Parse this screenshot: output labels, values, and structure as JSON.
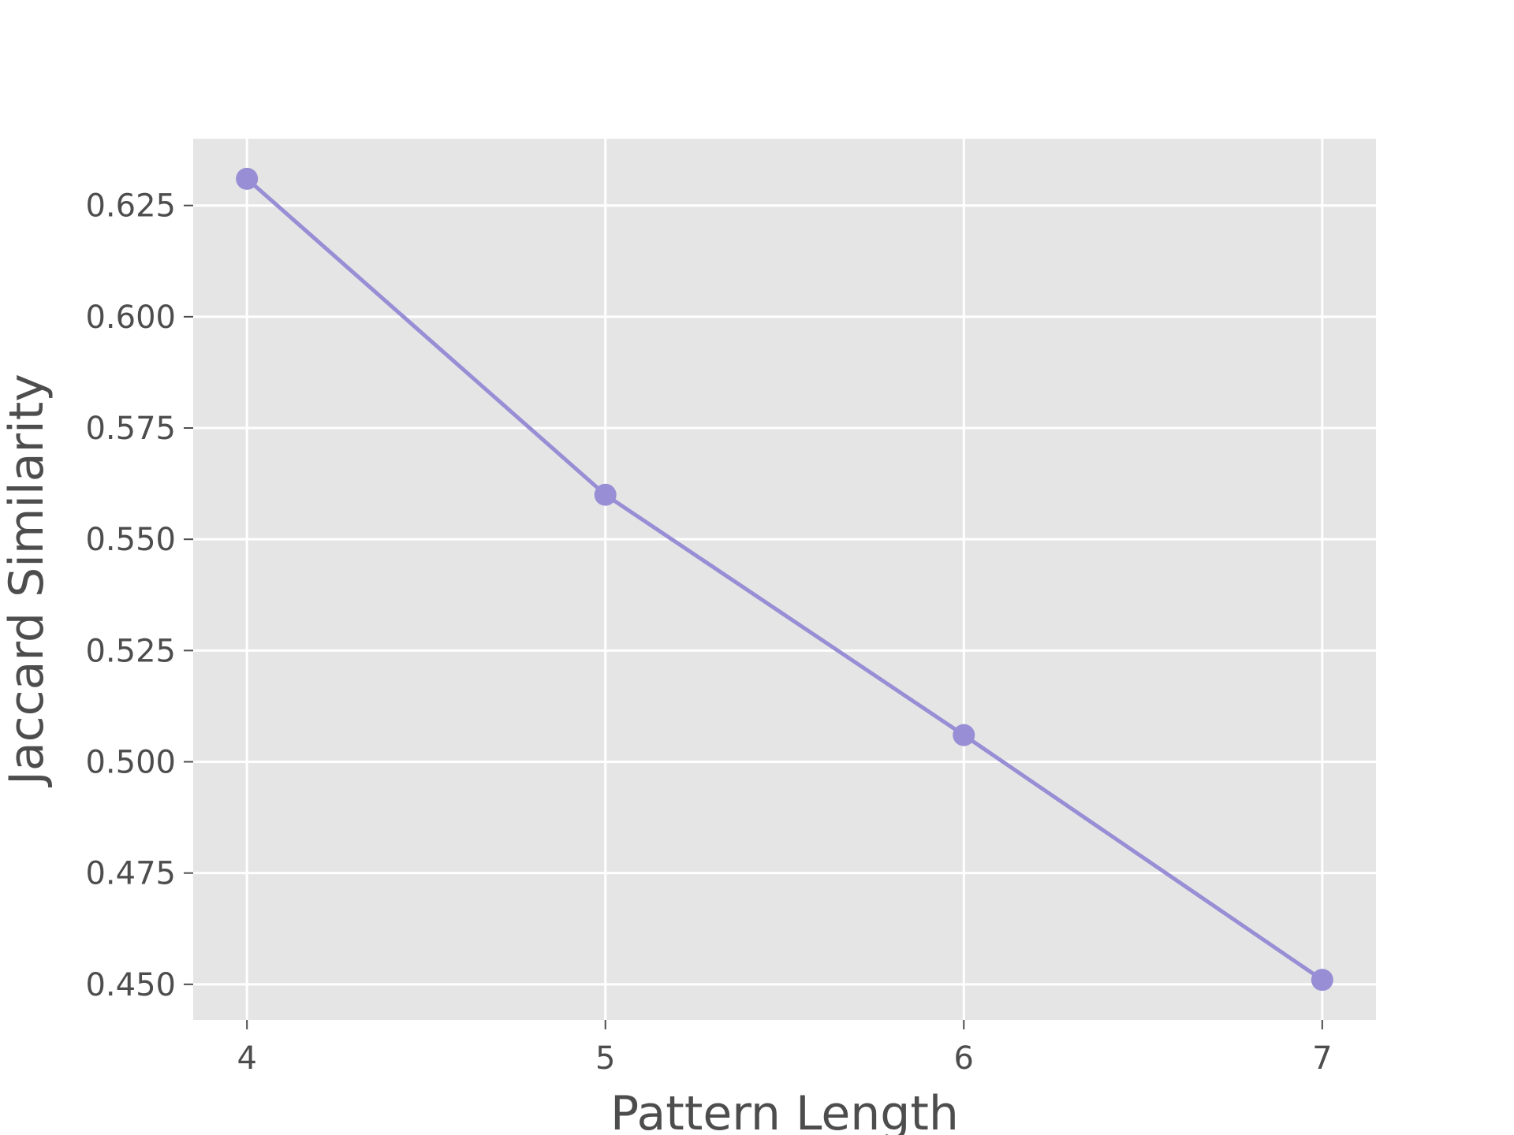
{
  "chart_data": {
    "type": "line",
    "title": "",
    "xlabel": "Pattern Length",
    "ylabel": "Jaccard Similarity",
    "x": [
      4,
      5,
      6,
      7
    ],
    "series": [
      {
        "values": [
          0.631,
          0.56,
          0.506,
          0.451
        ],
        "color": "#988ED5"
      }
    ],
    "xticks": [
      4,
      5,
      6,
      7
    ],
    "xtick_labels": [
      "4",
      "5",
      "6",
      "7"
    ],
    "yticks": [
      0.45,
      0.475,
      0.5,
      0.525,
      0.55,
      0.575,
      0.6,
      0.625
    ],
    "ytick_labels": [
      "0.450",
      "0.475",
      "0.500",
      "0.525",
      "0.550",
      "0.575",
      "0.600",
      "0.625"
    ],
    "xlim": [
      3.85,
      7.15
    ],
    "ylim": [
      0.442,
      0.64
    ],
    "grid": true,
    "legend": "none",
    "colors": {
      "plot_background": "#E5E5E5",
      "grid": "#FFFFFF",
      "text": "#4D4D4D",
      "line": "#988ED5"
    }
  }
}
